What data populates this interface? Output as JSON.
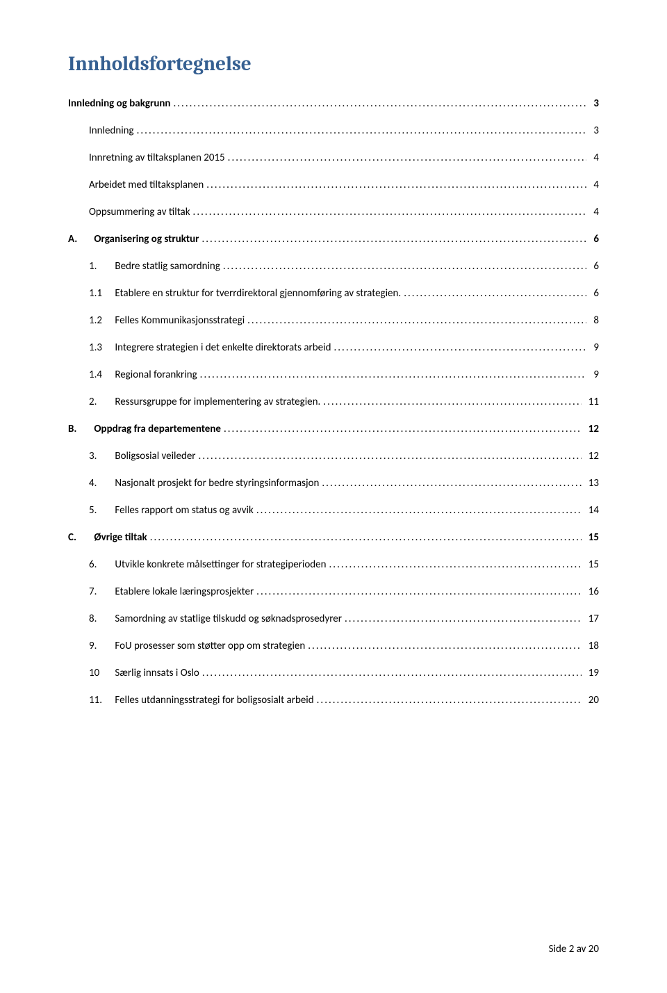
{
  "colors": {
    "heading": "#355f91",
    "text": "#000000",
    "background": "#ffffff"
  },
  "typography": {
    "heading_font": "Cambria",
    "body_font": "Calibri",
    "heading_size_pt": 21,
    "body_size_pt": 11
  },
  "toc": {
    "title": "Innholdsfortegnelse",
    "entries": [
      {
        "indent": 0,
        "bold": true,
        "prefix": "",
        "label": "Innledning og bakgrunn",
        "page": "3"
      },
      {
        "indent": 1,
        "bold": false,
        "prefix": "",
        "label": "Innledning",
        "page": "3"
      },
      {
        "indent": 1,
        "bold": false,
        "prefix": "",
        "label": "Innretning av tiltaksplanen 2015",
        "page": "4"
      },
      {
        "indent": 1,
        "bold": false,
        "prefix": "",
        "label": "Arbeidet med tiltaksplanen",
        "page": "4"
      },
      {
        "indent": 1,
        "bold": false,
        "prefix": "",
        "label": "Oppsummering av tiltak",
        "page": "4"
      },
      {
        "indent": 0,
        "bold": true,
        "prefix": "A.",
        "label": "Organisering og struktur",
        "page": "6"
      },
      {
        "indent": 1,
        "bold": false,
        "prefix": "1.",
        "label": "Bedre statlig samordning",
        "page": "6"
      },
      {
        "indent": 1,
        "bold": false,
        "prefix": "1.1",
        "label": "Etablere en struktur for tverrdirektoral gjennomføring av strategien.",
        "page": "6"
      },
      {
        "indent": 1,
        "bold": false,
        "prefix": "1.2",
        "label": "Felles Kommunikasjonsstrategi",
        "page": "8"
      },
      {
        "indent": 1,
        "bold": false,
        "prefix": "1.3",
        "label": "Integrere strategien i det enkelte direktorats arbeid",
        "page": "9"
      },
      {
        "indent": 1,
        "bold": false,
        "prefix": "1.4",
        "label": "Regional forankring",
        "page": "9"
      },
      {
        "indent": 1,
        "bold": false,
        "prefix": "2.",
        "label": "Ressursgruppe for implementering av strategien.",
        "page": "11"
      },
      {
        "indent": 0,
        "bold": true,
        "prefix": "B.",
        "label": "Oppdrag fra departementene",
        "page": "12"
      },
      {
        "indent": 1,
        "bold": false,
        "prefix": "3.",
        "label": "Boligsosial veileder",
        "page": "12"
      },
      {
        "indent": 1,
        "bold": false,
        "prefix": "4.",
        "label": "Nasjonalt prosjekt for bedre styringsinformasjon",
        "page": "13"
      },
      {
        "indent": 1,
        "bold": false,
        "prefix": "5.",
        "label": "Felles rapport om status og avvik",
        "page": "14"
      },
      {
        "indent": 0,
        "bold": true,
        "prefix": "C.",
        "label": "Øvrige tiltak",
        "page": "15"
      },
      {
        "indent": 1,
        "bold": false,
        "prefix": "6.",
        "label": "Utvikle konkrete målsettinger for strategiperioden",
        "page": "15"
      },
      {
        "indent": 1,
        "bold": false,
        "prefix": "7.",
        "label": "Etablere lokale læringsprosjekter",
        "page": "16"
      },
      {
        "indent": 1,
        "bold": false,
        "prefix": "8.",
        "label": "Samordning av statlige tilskudd og søknadsprosedyrer",
        "page": "17"
      },
      {
        "indent": 1,
        "bold": false,
        "prefix": "9.",
        "label": "FoU prosesser som støtter opp om strategien",
        "page": "18"
      },
      {
        "indent": 1,
        "bold": false,
        "prefix": "10",
        "label": "Særlig innsats i Oslo",
        "page": "19"
      },
      {
        "indent": 1,
        "bold": false,
        "prefix": "11.",
        "label": "Felles utdanningsstrategi for boligsosialt arbeid",
        "page": "20"
      }
    ]
  },
  "footer": {
    "text": "Side 2 av 20"
  }
}
